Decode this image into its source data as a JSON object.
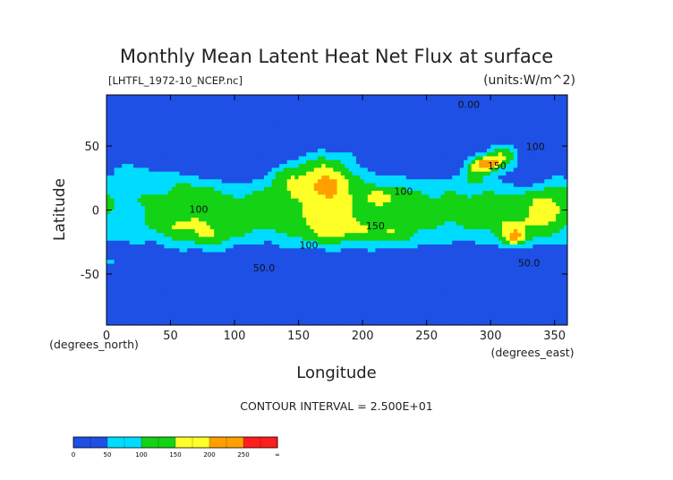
{
  "chart_data": {
    "type": "heatmap",
    "title": "Monthly Mean Latent Heat Net Flux at surface",
    "file_label": "[LHTFL_1972-10_NCEP.nc]",
    "units_label": "(units:W/m^2)",
    "xlabel": "Longitude",
    "ylabel": "Latitude",
    "x_unit_label": "(degrees_east)",
    "y_unit_label": "(degrees_north)",
    "xlim": [
      0,
      360
    ],
    "ylim": [
      -90,
      90
    ],
    "x_ticks": [
      0,
      50,
      100,
      150,
      200,
      250,
      300,
      350
    ],
    "y_ticks": [
      -50,
      0,
      50
    ],
    "contour_interval_text": "CONTOUR INTERVAL = 2.500E+01",
    "contour_labels": [
      {
        "text": "0.00",
        "lon": 283,
        "lat": 80
      },
      {
        "text": "100",
        "lon": 335,
        "lat": 47
      },
      {
        "text": "150",
        "lon": 305,
        "lat": 32
      },
      {
        "text": "100",
        "lon": 232,
        "lat": 12
      },
      {
        "text": "100",
        "lon": 72,
        "lat": -2
      },
      {
        "text": "150",
        "lon": 210,
        "lat": -15
      },
      {
        "text": "100",
        "lon": 158,
        "lat": -30
      },
      {
        "text": "50.0",
        "lon": 123,
        "lat": -48
      },
      {
        "text": "50.0",
        "lon": 330,
        "lat": -44
      }
    ],
    "colorbar": {
      "colors": [
        "#1e50e6",
        "#00dcff",
        "#14d214",
        "#ffff28",
        "#ffa000",
        "#ff1e1e"
      ],
      "tick_labels": [
        "0",
        "50",
        "100",
        "150",
        "200",
        "250",
        "∞"
      ]
    },
    "color_levels": [
      50,
      100,
      150,
      200,
      250
    ]
  }
}
